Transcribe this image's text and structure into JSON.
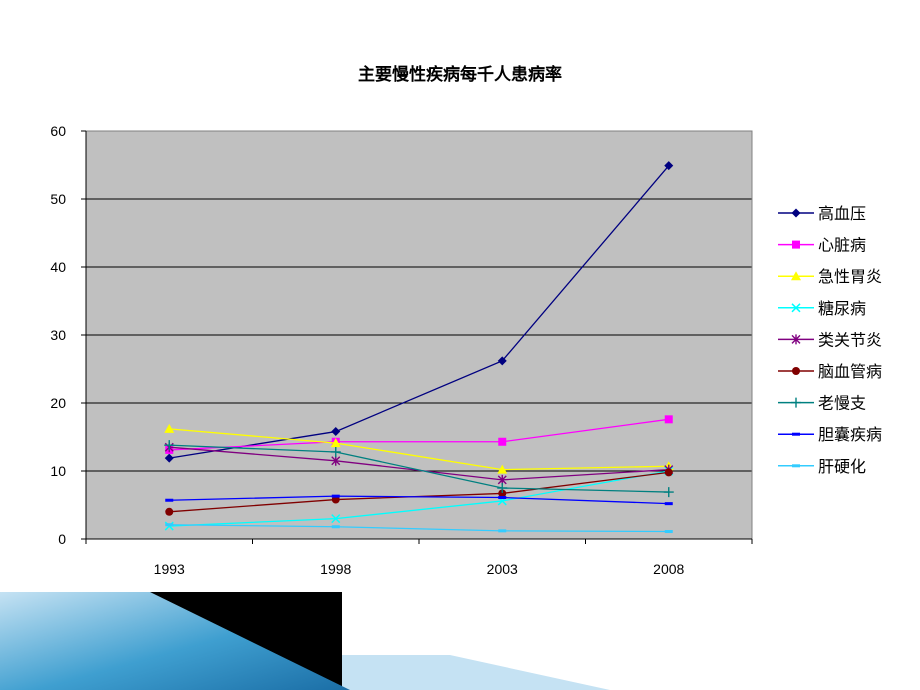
{
  "chart_data": {
    "type": "line",
    "title": "主要慢性疾病每千人患病率",
    "xlabel": "",
    "ylabel": "",
    "categories": [
      "1993",
      "1998",
      "2003",
      "2008"
    ],
    "ylim": [
      0,
      60
    ],
    "yticks": [
      0,
      10,
      20,
      30,
      40,
      50,
      60
    ],
    "grid": true,
    "plot_background": "#c0c0c0",
    "legend_position": "right",
    "series": [
      {
        "name": "高血压",
        "values": [
          11.9,
          15.8,
          26.2,
          54.9
        ],
        "color": "#000080",
        "marker": "diamond"
      },
      {
        "name": "心脏病",
        "values": [
          13.1,
          14.3,
          14.3,
          17.6
        ],
        "color": "#ff00ff",
        "marker": "square"
      },
      {
        "name": "急性胃炎",
        "values": [
          16.2,
          14.1,
          10.2,
          10.7
        ],
        "color": "#ffff00",
        "marker": "triangle"
      },
      {
        "name": "糖尿病",
        "values": [
          1.9,
          3.0,
          5.6,
          10.0
        ],
        "color": "#00ffff",
        "marker": "x"
      },
      {
        "name": "类关节炎",
        "values": [
          13.5,
          11.5,
          8.7,
          10.2
        ],
        "color": "#800080",
        "marker": "star"
      },
      {
        "name": "脑血管病",
        "values": [
          4.0,
          5.8,
          6.7,
          9.8
        ],
        "color": "#800000",
        "marker": "circle"
      },
      {
        "name": "老慢支",
        "values": [
          13.8,
          12.8,
          7.5,
          6.9
        ],
        "color": "#008080",
        "marker": "plus"
      },
      {
        "name": "胆囊疾病",
        "values": [
          5.7,
          6.3,
          6.1,
          5.2
        ],
        "color": "#0000ff",
        "marker": "dash"
      },
      {
        "name": "肝硬化",
        "values": [
          2.1,
          1.8,
          1.2,
          1.1
        ],
        "color": "#33ccff",
        "marker": "dash"
      }
    ]
  },
  "decoration": {
    "band_dark": "#000000",
    "band_blue_light": "#c5e2f3",
    "band_blue_mid": "#3f9fd0",
    "band_blue_deep": "#1b6ea6"
  }
}
